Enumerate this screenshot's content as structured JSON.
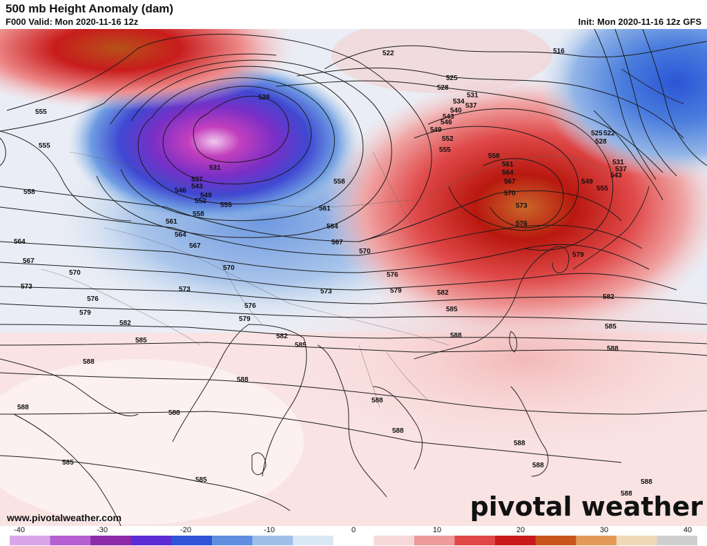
{
  "header": {
    "title": "500 mb Height Anomaly (dam)",
    "valid": "F000 Valid: Mon 2020-11-16 12z",
    "init": "Init: Mon 2020-11-16 12z GFS"
  },
  "footer": {
    "website": "www.pivotalweather.com",
    "brand": "pivotal weather"
  },
  "colorbar": {
    "ticks": [
      "-40",
      "-30",
      "-20",
      "-10",
      "0",
      "10",
      "20",
      "30",
      "40"
    ],
    "min": -40,
    "max": 40,
    "colors": [
      "#d9a6e8",
      "#b65fd2",
      "#8c2aa9",
      "#5b2cd4",
      "#3153d6",
      "#5f8ee0",
      "#9fbfe9",
      "#dae7f4",
      "#ffffff",
      "#f7d8d8",
      "#ee9a9a",
      "#e04848",
      "#c81c1c",
      "#c8561c",
      "#e39a56",
      "#eed9b8",
      "#cfcfcf"
    ]
  },
  "contour_labels": [
    "516",
    "522",
    "525",
    "528",
    "531",
    "534",
    "537",
    "540",
    "543",
    "546",
    "549",
    "552",
    "555",
    "558",
    "561",
    "564",
    "567",
    "570",
    "573",
    "576",
    "579",
    "582",
    "585",
    "588"
  ]
}
